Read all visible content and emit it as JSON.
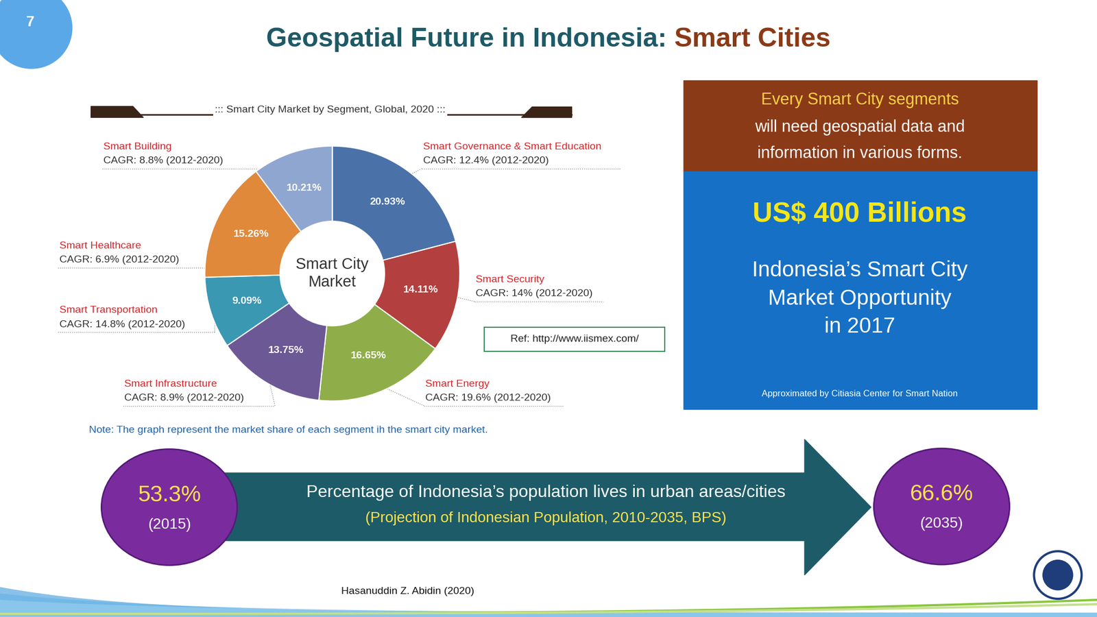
{
  "page_number": "7",
  "title": {
    "parts": [
      {
        "text": "Geospatial Future in Indonesia:",
        "color": "#1e5a66"
      },
      {
        "text": "Smart Cities",
        "color": "#8b3a17"
      }
    ]
  },
  "chart_data": {
    "type": "pie",
    "title": "::: Smart City Market by Segment, Global, 2020 :::",
    "center_label": "Smart City\nMarket",
    "categories": [
      "Smart Governance & Smart Education",
      "Smart Security",
      "Smart Energy",
      "Smart Infrastructure",
      "Smart Transportation",
      "Smart Healthcare",
      "Smart Building"
    ],
    "values": [
      20.93,
      14.11,
      16.65,
      13.75,
      9.09,
      15.26,
      10.21
    ],
    "value_labels": [
      "20.93%",
      "14.11%",
      "16.65%",
      "13.75%",
      "9.09%",
      "15.26%",
      "10.21%"
    ],
    "colors": [
      "#4a72a8",
      "#b3403f",
      "#8fae4a",
      "#6d5896",
      "#3a98b3",
      "#e0893b",
      "#8fa6d0"
    ],
    "annotations": [
      "CAGR: 12.4% (2012-2020)",
      "CAGR: 14% (2012-2020)",
      "CAGR: 19.6% (2012-2020)",
      "CAGR: 8.9% (2012-2020)",
      "CAGR: 14.8% (2012-2020)",
      "CAGR: 6.9% (2012-2020)",
      "CAGR: 8.8% (2012-2020)"
    ],
    "data_labels": true,
    "note": "Note: The graph represent the market share of each segment ih the smart city market.",
    "reference": "Ref: http://www.iismex.com/"
  },
  "panel": {
    "header_lines": [
      "Every Smart City segments",
      "will need geospatial data and",
      "information in various forms."
    ],
    "headline": "US$ 400 Billions",
    "subtitle_lines": [
      "Indonesia’s Smart City",
      "Market Opportunity",
      "in 2017"
    ],
    "credit": "Approximated by Citiasia Center for Smart Nation"
  },
  "urbanization": {
    "text": "Percentage of Indonesia’s population lives in urban areas/cities",
    "source": "(Projection of Indonesian Population, 2010-2035, BPS)",
    "start": {
      "label": "53.3%",
      "year": "(2015)"
    },
    "end": {
      "label": "66.6%",
      "year": "(2035)"
    }
  },
  "footer": "Hasanuddin Z. Abidin (2020)"
}
